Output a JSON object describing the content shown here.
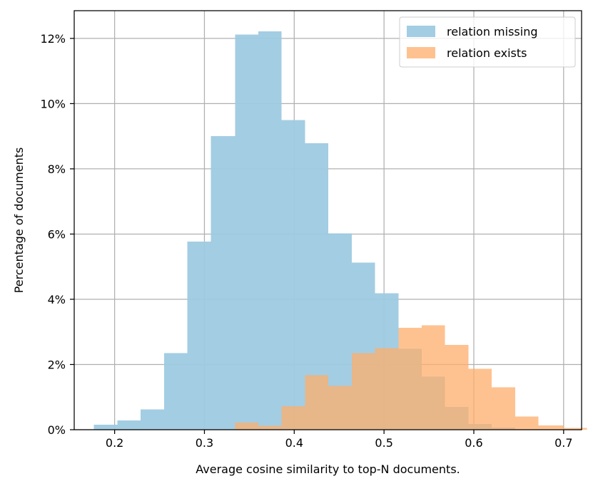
{
  "chart_data": {
    "type": "bar",
    "histogram": true,
    "xlabel": "Average cosine similarity to top-N documents.",
    "ylabel": "Percentage of documents",
    "xlim": [
      0.155,
      0.72
    ],
    "ylim": [
      0,
      12.85
    ],
    "xticks": [
      0.2,
      0.3,
      0.4,
      0.5,
      0.6,
      0.7
    ],
    "xtick_labels": [
      "0.2",
      "0.3",
      "0.4",
      "0.5",
      "0.6",
      "0.7"
    ],
    "yticks": [
      0,
      2,
      4,
      6,
      8,
      10,
      12
    ],
    "ytick_labels": [
      "0%",
      "2%",
      "4%",
      "6%",
      "8%",
      "10%",
      "12%"
    ],
    "grid": true,
    "legend_position": "top-right",
    "series": [
      {
        "name": "relation missing",
        "color": "#9ecae1",
        "bins": [
          {
            "x0": 0.177,
            "x1": 0.203,
            "value": 0.15
          },
          {
            "x0": 0.203,
            "x1": 0.229,
            "value": 0.28
          },
          {
            "x0": 0.229,
            "x1": 0.255,
            "value": 0.62
          },
          {
            "x0": 0.255,
            "x1": 0.281,
            "value": 2.35
          },
          {
            "x0": 0.281,
            "x1": 0.307,
            "value": 5.77
          },
          {
            "x0": 0.307,
            "x1": 0.334,
            "value": 9.0
          },
          {
            "x0": 0.334,
            "x1": 0.36,
            "value": 12.12
          },
          {
            "x0": 0.36,
            "x1": 0.386,
            "value": 12.22
          },
          {
            "x0": 0.386,
            "x1": 0.412,
            "value": 9.5
          },
          {
            "x0": 0.412,
            "x1": 0.438,
            "value": 8.78
          },
          {
            "x0": 0.438,
            "x1": 0.464,
            "value": 6.02
          },
          {
            "x0": 0.464,
            "x1": 0.49,
            "value": 5.13
          },
          {
            "x0": 0.49,
            "x1": 0.516,
            "value": 4.18
          },
          {
            "x0": 0.516,
            "x1": 0.542,
            "value": 2.48
          },
          {
            "x0": 0.542,
            "x1": 0.568,
            "value": 1.63
          },
          {
            "x0": 0.568,
            "x1": 0.594,
            "value": 0.7
          },
          {
            "x0": 0.594,
            "x1": 0.62,
            "value": 0.18
          },
          {
            "x0": 0.62,
            "x1": 0.646,
            "value": 0.07
          }
        ]
      },
      {
        "name": "relation exists",
        "color": "#fdae6b",
        "bins": [
          {
            "x0": 0.334,
            "x1": 0.36,
            "value": 0.22
          },
          {
            "x0": 0.36,
            "x1": 0.386,
            "value": 0.12
          },
          {
            "x0": 0.386,
            "x1": 0.412,
            "value": 0.72
          },
          {
            "x0": 0.412,
            "x1": 0.438,
            "value": 1.67
          },
          {
            "x0": 0.438,
            "x1": 0.464,
            "value": 1.34
          },
          {
            "x0": 0.464,
            "x1": 0.49,
            "value": 2.35
          },
          {
            "x0": 0.49,
            "x1": 0.516,
            "value": 2.5
          },
          {
            "x0": 0.516,
            "x1": 0.542,
            "value": 3.13
          },
          {
            "x0": 0.542,
            "x1": 0.568,
            "value": 3.2
          },
          {
            "x0": 0.568,
            "x1": 0.594,
            "value": 2.6
          },
          {
            "x0": 0.594,
            "x1": 0.62,
            "value": 1.87
          },
          {
            "x0": 0.62,
            "x1": 0.646,
            "value": 1.3
          },
          {
            "x0": 0.646,
            "x1": 0.672,
            "value": 0.4
          },
          {
            "x0": 0.672,
            "x1": 0.7,
            "value": 0.13
          },
          {
            "x0": 0.7,
            "x1": 0.726,
            "value": 0.05
          }
        ]
      }
    ]
  }
}
